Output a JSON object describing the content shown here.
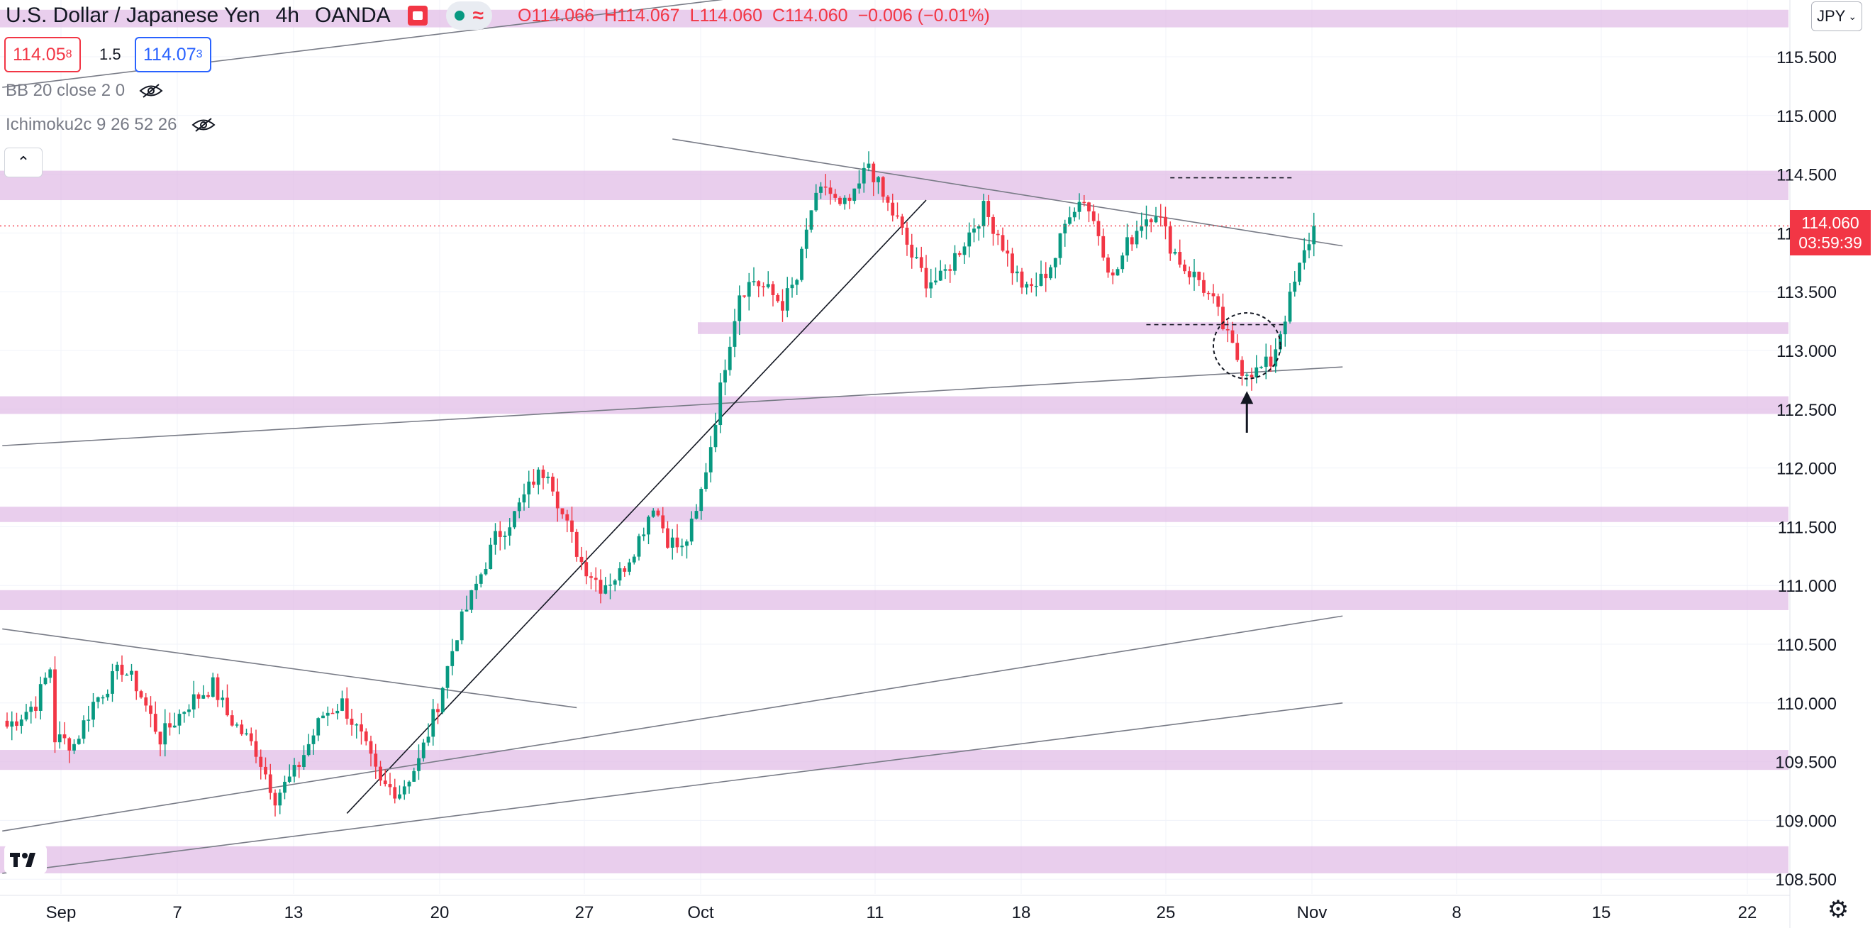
{
  "header": {
    "symbol": "U.S. Dollar / Japanese Yen",
    "timeframe": "4h",
    "broker": "OANDA",
    "ohlc": {
      "open": "O114.066",
      "high": "H114.067",
      "low": "L114.060",
      "close": "C114.060",
      "change": "−0.006 (−0.01%)"
    }
  },
  "quote": {
    "bid_main": "114.05",
    "bid_sup": "8",
    "spread": "1.5",
    "ask_main": "114.07",
    "ask_sup": "3"
  },
  "indicators": [
    {
      "label": "BB 20 close 2 0"
    },
    {
      "label": "Ichimoku2c 9 26 52 26"
    }
  ],
  "currency_button": {
    "label": "JPY"
  },
  "last_price": {
    "price": "114.060",
    "countdown": "03:59:39"
  },
  "colors": {
    "up": "#089981",
    "down": "#f23645",
    "zone": "#e1bee7",
    "trendline": "#787b86",
    "price_line": "#f23645",
    "grid": "#f0f3fa",
    "text": "#131722"
  },
  "chart_data": {
    "type": "candlestick",
    "symbol": "USDJPY",
    "interval": "4h",
    "ylim": [
      108.4,
      115.85
    ],
    "y_ticks": [
      "115.500",
      "115.000",
      "114.500",
      "114.000",
      "113.500",
      "113.000",
      "112.500",
      "112.000",
      "111.500",
      "111.000",
      "110.500",
      "110.000",
      "109.500",
      "109.000",
      "108.500"
    ],
    "y_tick_values": [
      115.5,
      115.0,
      114.5,
      114.0,
      113.5,
      113.0,
      112.5,
      112.0,
      111.5,
      111.0,
      110.5,
      110.0,
      109.5,
      109.0,
      108.5
    ],
    "x_ticks": [
      "Sep",
      "7",
      "13",
      "20",
      "27",
      "Oct",
      "11",
      "18",
      "25",
      "Nov",
      "8",
      "15",
      "22"
    ],
    "last_price": 114.06,
    "price_path": [
      [
        0,
        109.8
      ],
      [
        6,
        110.0
      ],
      [
        9,
        110.3
      ],
      [
        10,
        109.7
      ],
      [
        14,
        109.65
      ],
      [
        18,
        110.0
      ],
      [
        24,
        110.3
      ],
      [
        27,
        110.15
      ],
      [
        32,
        109.7
      ],
      [
        38,
        110.0
      ],
      [
        43,
        110.15
      ],
      [
        46,
        109.9
      ],
      [
        52,
        109.6
      ],
      [
        56,
        109.2
      ],
      [
        60,
        109.4
      ],
      [
        66,
        109.9
      ],
      [
        70,
        110.0
      ],
      [
        74,
        109.7
      ],
      [
        78,
        109.3
      ],
      [
        82,
        109.25
      ],
      [
        86,
        109.5
      ],
      [
        90,
        110.0
      ],
      [
        94,
        110.6
      ],
      [
        98,
        111.0
      ],
      [
        102,
        111.4
      ],
      [
        106,
        111.6
      ],
      [
        110,
        111.9
      ],
      [
        113,
        112.0
      ],
      [
        116,
        111.6
      ],
      [
        120,
        111.2
      ],
      [
        124,
        111.0
      ],
      [
        128,
        111.1
      ],
      [
        132,
        111.4
      ],
      [
        135,
        111.7
      ],
      [
        138,
        111.4
      ],
      [
        141,
        111.3
      ],
      [
        144,
        111.6
      ],
      [
        147,
        112.2
      ],
      [
        150,
        112.9
      ],
      [
        153,
        113.5
      ],
      [
        156,
        113.6
      ],
      [
        159,
        113.5
      ],
      [
        162,
        113.4
      ],
      [
        165,
        113.6
      ],
      [
        168,
        114.2
      ],
      [
        171,
        114.4
      ],
      [
        174,
        114.2
      ],
      [
        177,
        114.3
      ],
      [
        180,
        114.6
      ],
      [
        183,
        114.3
      ],
      [
        186,
        114.1
      ],
      [
        189,
        113.8
      ],
      [
        192,
        113.6
      ],
      [
        195,
        113.6
      ],
      [
        198,
        113.8
      ],
      [
        201,
        114.0
      ],
      [
        204,
        114.2
      ],
      [
        207,
        114.0
      ],
      [
        210,
        113.7
      ],
      [
        213,
        113.5
      ],
      [
        216,
        113.6
      ],
      [
        219,
        113.8
      ],
      [
        222,
        114.2
      ],
      [
        225,
        114.3
      ],
      [
        228,
        114.0
      ],
      [
        231,
        113.6
      ],
      [
        234,
        113.9
      ],
      [
        237,
        114.1
      ],
      [
        240,
        114.2
      ],
      [
        243,
        113.9
      ],
      [
        246,
        113.7
      ],
      [
        249,
        113.6
      ],
      [
        252,
        113.4
      ],
      [
        255,
        113.1
      ],
      [
        258,
        112.85
      ],
      [
        261,
        112.82
      ],
      [
        264,
        112.9
      ],
      [
        267,
        113.3
      ],
      [
        270,
        113.7
      ],
      [
        273,
        114.06
      ]
    ],
    "bars_per_day": 6,
    "zones": [
      {
        "low": 115.75,
        "high": 115.9
      },
      {
        "low": 114.28,
        "high": 114.53
      },
      {
        "low": 113.14,
        "high": 113.24
      },
      {
        "low": 112.46,
        "high": 112.61
      },
      {
        "low": 111.54,
        "high": 111.67
      },
      {
        "low": 110.79,
        "high": 110.96
      },
      {
        "low": 109.43,
        "high": 109.6
      },
      {
        "low": 108.55,
        "high": 108.78
      }
    ],
    "trendlines": [
      {
        "from": [
          -1,
          115.24
        ],
        "to": [
          150,
          115.99
        ]
      },
      {
        "from": [
          139,
          114.8
        ],
        "to": [
          279,
          113.89
        ]
      },
      {
        "from": [
          -1,
          112.19
        ],
        "to": [
          279,
          112.86
        ]
      },
      {
        "from": [
          -1,
          110.63
        ],
        "to": [
          119,
          109.96
        ]
      },
      {
        "from": [
          71,
          109.06
        ],
        "to": [
          192,
          114.28
        ]
      },
      {
        "from": [
          -1,
          108.91
        ],
        "to": [
          279,
          110.74
        ]
      },
      {
        "from": [
          -1,
          108.55
        ],
        "to": [
          279,
          110.0
        ]
      }
    ],
    "dashed_levels": [
      {
        "price": 114.47,
        "from": 243,
        "to": 269
      },
      {
        "price": 113.22,
        "from": 238,
        "to": 267
      }
    ],
    "annotation_circle": {
      "center": [
        259,
        113.04
      ],
      "radius_bars": 7,
      "radius_price": 0.28
    },
    "arrow": {
      "bar": 259,
      "from_price": 112.3,
      "to_price": 112.63
    }
  }
}
